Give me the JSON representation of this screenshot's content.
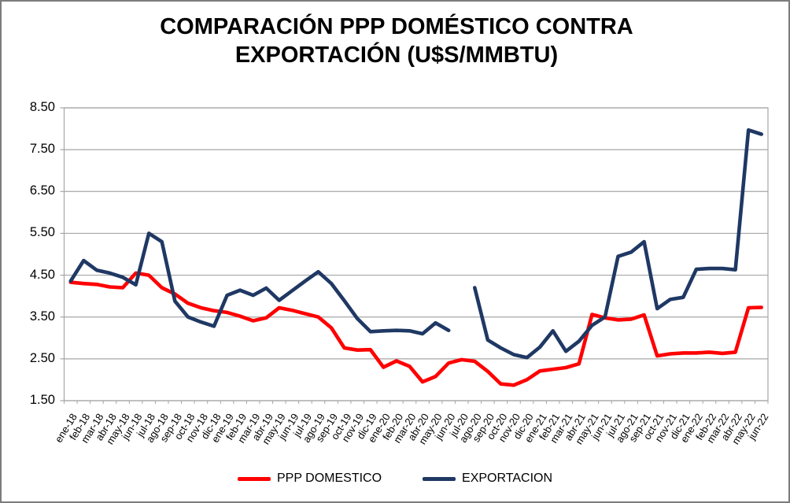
{
  "colors": {
    "ppp_domestico": "#ff0000",
    "exportacion": "#1f3864",
    "gridline": "#a6a6a6",
    "frame_border": "#7c7c7c",
    "text": "#000000"
  },
  "legend": {
    "items": [
      {
        "label": "PPP DOMESTICO",
        "color": "#ff0000"
      },
      {
        "label": "EXPORTACION",
        "color": "#1f3864"
      }
    ]
  },
  "chart_data": {
    "type": "line",
    "title": "COMPARACIÓN PPP DOMÉSTICO CONTRA EXPORTACIÓN (U$S/MMBTU)",
    "xlabel": "",
    "ylabel": "",
    "ylim": [
      1.5,
      8.5
    ],
    "ytick_step": 1.0,
    "ytick_labels": [
      "1.50",
      "2.50",
      "3.50",
      "4.50",
      "5.50",
      "6.50",
      "7.50",
      "8.50"
    ],
    "grid": true,
    "legend_position": "bottom",
    "categories": [
      "ene-18",
      "feb-18",
      "mar-18",
      "abr-18",
      "may-18",
      "jun-18",
      "jul-18",
      "ago-18",
      "sep-18",
      "oct-18",
      "nov-18",
      "dic-18",
      "ene-19",
      "feb-19",
      "mar-19",
      "abr-19",
      "may-19",
      "jun-19",
      "jul-19",
      "ago-19",
      "sep-19",
      "oct-19",
      "nov-19",
      "dic-19",
      "ene-20",
      "feb-20",
      "mar-20",
      "abr-20",
      "may-20",
      "jun-20",
      "jul-20",
      "ago-20",
      "sep-20",
      "oct-20",
      "nov-20",
      "dic-20",
      "ene-21",
      "feb-21",
      "mar-21",
      "abr-21",
      "may-21",
      "jun-21",
      "jul-21",
      "ago-21",
      "sep-21",
      "oct-21",
      "nov-21",
      "dic-21",
      "ene-22",
      "feb-22",
      "mar-22",
      "abr-22",
      "may-22",
      "jun-22"
    ],
    "series": [
      {
        "name": "PPP DOMESTICO",
        "color": "#ff0000",
        "values": [
          4.33,
          4.3,
          4.28,
          4.22,
          4.2,
          4.55,
          4.5,
          4.2,
          4.05,
          3.83,
          3.72,
          3.65,
          3.61,
          3.52,
          3.41,
          3.48,
          3.72,
          3.66,
          3.58,
          3.5,
          3.24,
          2.76,
          2.71,
          2.72,
          2.3,
          2.45,
          2.32,
          1.95,
          2.08,
          2.4,
          2.48,
          2.44,
          2.2,
          1.9,
          1.87,
          2.0,
          2.21,
          2.25,
          2.29,
          2.38,
          3.56,
          3.48,
          3.43,
          3.45,
          3.55,
          2.57,
          2.62,
          2.64,
          2.64,
          2.66,
          2.63,
          2.66,
          3.72,
          3.73
        ]
      },
      {
        "name": "EXPORTACION",
        "color": "#1f3864",
        "values": [
          4.36,
          4.85,
          4.62,
          4.55,
          4.45,
          4.27,
          5.5,
          5.3,
          3.88,
          3.5,
          3.38,
          3.28,
          4.02,
          4.14,
          4.02,
          4.19,
          3.9,
          4.13,
          4.36,
          4.58,
          4.3,
          3.89,
          3.46,
          3.15,
          3.17,
          3.18,
          3.17,
          3.1,
          3.36,
          3.18,
          null,
          4.2,
          2.95,
          2.76,
          2.6,
          2.53,
          2.78,
          3.17,
          2.68,
          2.92,
          3.3,
          3.5,
          4.95,
          5.05,
          5.3,
          3.7,
          3.92,
          3.97,
          4.64,
          4.66,
          4.66,
          4.63,
          7.97,
          7.87
        ]
      }
    ]
  }
}
